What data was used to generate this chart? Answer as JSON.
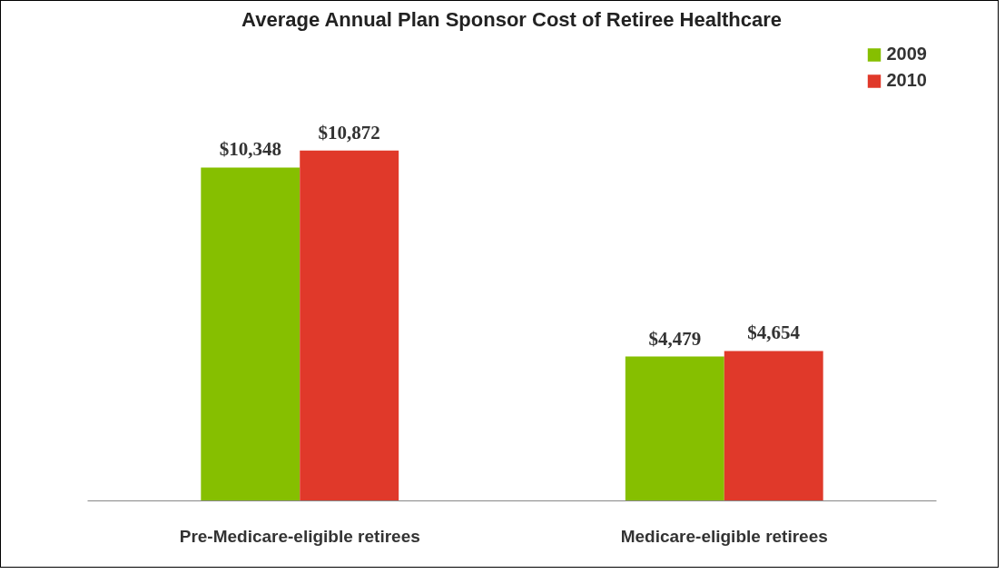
{
  "chart_data": {
    "type": "bar",
    "title": "Average Annual Plan Sponsor Cost of Retiree Healthcare",
    "categories": [
      "Pre-Medicare-eligible retirees",
      "Medicare-eligible retirees"
    ],
    "series": [
      {
        "name": "2009",
        "color": "#86bf00",
        "values": [
          10348,
          4479
        ],
        "value_labels": [
          "$10,348",
          "$4,479"
        ]
      },
      {
        "name": "2010",
        "color": "#e0392a",
        "values": [
          10872,
          4654
        ],
        "value_labels": [
          "$10,872",
          "$4,654"
        ]
      }
    ],
    "legend": "top right",
    "grid": false
  }
}
